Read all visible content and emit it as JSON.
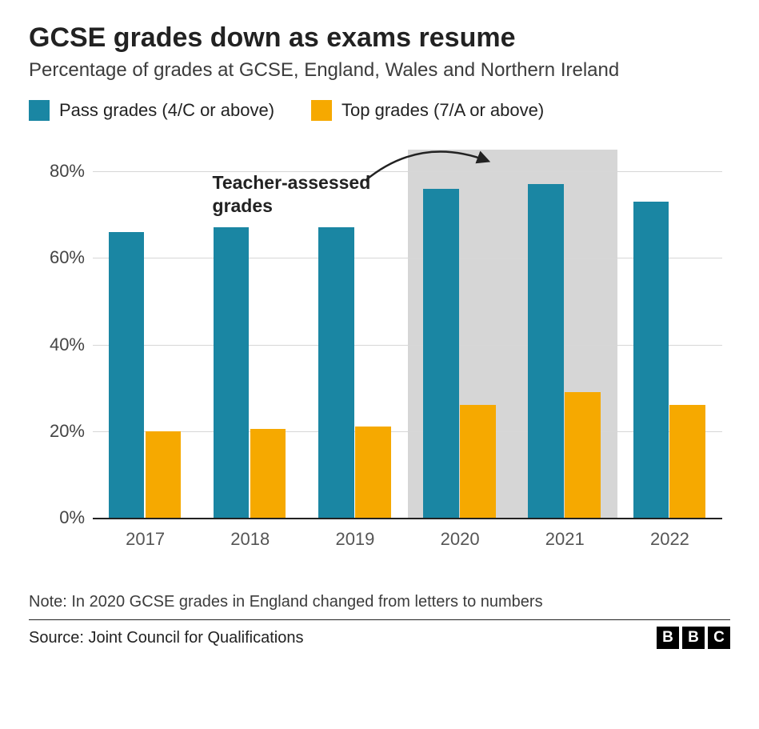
{
  "title": "GCSE grades down as exams resume",
  "subtitle": "Percentage of grades at GCSE, England, Wales and Northern Ireland",
  "legend": [
    {
      "label": "Pass grades (4/C or above)",
      "color": "#1a86a3"
    },
    {
      "label": "Top grades (7/A or above)",
      "color": "#f6a900"
    }
  ],
  "chart": {
    "type": "bar-grouped",
    "y": {
      "min": 0,
      "max": 85,
      "ticks": [
        0,
        20,
        40,
        60,
        80
      ],
      "suffix": "%",
      "label_fontsize": 22,
      "grid_color": "#d7d7d7",
      "zero_line_color": "#222222"
    },
    "categories": [
      "2017",
      "2018",
      "2019",
      "2020",
      "2021",
      "2022"
    ],
    "series": [
      {
        "name": "pass",
        "color": "#1a86a3",
        "values": [
          66,
          67,
          67,
          76,
          77,
          73
        ]
      },
      {
        "name": "top",
        "color": "#f6a900",
        "values": [
          20,
          20.5,
          21,
          26,
          29,
          26
        ]
      }
    ],
    "bar_width_pct": 34,
    "bar_gap_pct": 1,
    "group_pad_left_pct": 15,
    "highlight": {
      "from_index": 3,
      "to_index": 4,
      "color": "#d6d6d6"
    },
    "annotation": {
      "text_lines": [
        "Teacher-assessed",
        "grades"
      ],
      "pointing_to_index": 3
    },
    "background_color": "#ffffff",
    "xlabel_fontsize": 22,
    "xlabel_color": "#555555"
  },
  "note": "Note: In 2020 GCSE grades in England changed from letters to numbers",
  "source": "Source: Joint Council for Qualifications",
  "brand": [
    "B",
    "B",
    "C"
  ]
}
